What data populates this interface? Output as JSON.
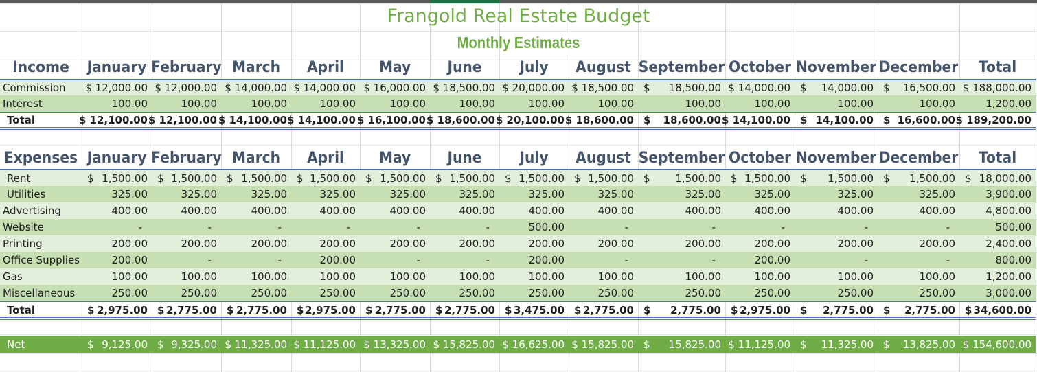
{
  "title": "Frangold Real Estate Budget",
  "subtitle": "Monthly Estimates",
  "colors": {
    "title_green": "#70ad47",
    "header_text": "#44546a",
    "band_light": "#e2efda",
    "band_dark": "#c6e0b4",
    "net_bar": "#70ad47",
    "rule_blue": "#4472c4"
  },
  "income": {
    "header": [
      "Income",
      "January",
      "February",
      "March",
      "April",
      "May",
      "June",
      "July",
      "August",
      "September",
      "October",
      "November",
      "December",
      "Total"
    ],
    "rows": [
      {
        "name": "Commission",
        "values": [
          "$ 12,000.00",
          "$ 12,000.00",
          "$ 14,000.00",
          "$ 14,000.00",
          "$ 16,000.00",
          "$ 18,500.00",
          "$ 20,000.00",
          "$ 18,500.00",
          "$|18,500.00",
          "$ 14,000.00",
          "$|14,000.00",
          "$|16,500.00",
          "$ 188,000.00"
        ]
      },
      {
        "name": "Interest",
        "values": [
          "100.00",
          "100.00",
          "100.00",
          "100.00",
          "100.00",
          "100.00",
          "100.00",
          "100.00",
          "100.00",
          "100.00",
          "100.00",
          "100.00",
          "1,200.00"
        ]
      }
    ],
    "total": {
      "name": "Total",
      "values": [
        "$ 12,100.00",
        "$ 12,100.00",
        "$ 14,100.00",
        "$ 14,100.00",
        "$ 16,100.00",
        "$ 18,600.00",
        "$ 20,100.00",
        "$ 18,600.00",
        "$|18,600.00",
        "$ 14,100.00",
        "$|14,100.00",
        "$|16,600.00",
        "$ 189,200.00"
      ]
    }
  },
  "expenses": {
    "header": [
      "Expenses",
      "January",
      "February",
      "March",
      "April",
      "May",
      "June",
      "July",
      "August",
      "September",
      "October",
      "November",
      "December",
      "Total"
    ],
    "rows": [
      {
        "name": "Rent",
        "values": [
          "$|1,500.00",
          "$|1,500.00",
          "$|1,500.00",
          "$|1,500.00",
          "$|1,500.00",
          "$|1,500.00",
          "$|1,500.00",
          "$|1,500.00",
          "$|1,500.00",
          "$|1,500.00",
          "$|1,500.00",
          "$|1,500.00",
          "$|18,000.00"
        ]
      },
      {
        "name": "Utilities",
        "values": [
          "325.00",
          "325.00",
          "325.00",
          "325.00",
          "325.00",
          "325.00",
          "325.00",
          "325.00",
          "325.00",
          "325.00",
          "325.00",
          "325.00",
          "3,900.00"
        ]
      },
      {
        "name": "Advertising",
        "values": [
          "400.00",
          "400.00",
          "400.00",
          "400.00",
          "400.00",
          "400.00",
          "400.00",
          "400.00",
          "400.00",
          "400.00",
          "400.00",
          "400.00",
          "4,800.00"
        ]
      },
      {
        "name": "Website",
        "values": [
          "-",
          "-",
          "-",
          "-",
          "-",
          "-",
          "500.00",
          "-",
          "-",
          "-",
          "-",
          "-",
          "500.00"
        ]
      },
      {
        "name": "Printing",
        "values": [
          "200.00",
          "200.00",
          "200.00",
          "200.00",
          "200.00",
          "200.00",
          "200.00",
          "200.00",
          "200.00",
          "200.00",
          "200.00",
          "200.00",
          "2,400.00"
        ]
      },
      {
        "name": "Office Supplies",
        "values": [
          "200.00",
          "-",
          "-",
          "200.00",
          "-",
          "-",
          "200.00",
          "-",
          "-",
          "200.00",
          "-",
          "-",
          "800.00"
        ]
      },
      {
        "name": "Gas",
        "values": [
          "100.00",
          "100.00",
          "100.00",
          "100.00",
          "100.00",
          "100.00",
          "100.00",
          "100.00",
          "100.00",
          "100.00",
          "100.00",
          "100.00",
          "1,200.00"
        ]
      },
      {
        "name": "Miscellaneous",
        "values": [
          "250.00",
          "250.00",
          "250.00",
          "250.00",
          "250.00",
          "250.00",
          "250.00",
          "250.00",
          "250.00",
          "250.00",
          "250.00",
          "250.00",
          "3,000.00"
        ]
      }
    ],
    "total": {
      "name": "Total",
      "values": [
        "$|2,975.00",
        "$|2,775.00",
        "$|2,775.00",
        "$|2,975.00",
        "$|2,775.00",
        "$|2,775.00",
        "$|3,475.00",
        "$|2,775.00",
        "$|2,775.00",
        "$|2,975.00",
        "$|2,775.00",
        "$|2,775.00",
        "$|34,600.00"
      ]
    }
  },
  "net": {
    "name": "Net",
    "values": [
      "$|9,125.00",
      "$|9,325.00",
      "$ 11,325.00",
      "$ 11,125.00",
      "$ 13,325.00",
      "$ 15,825.00",
      "$ 16,625.00",
      "$ 15,825.00",
      "$|15,825.00",
      "$ 11,125.00",
      "$|11,325.00",
      "$|13,825.00",
      "$ 154,600.00"
    ]
  }
}
